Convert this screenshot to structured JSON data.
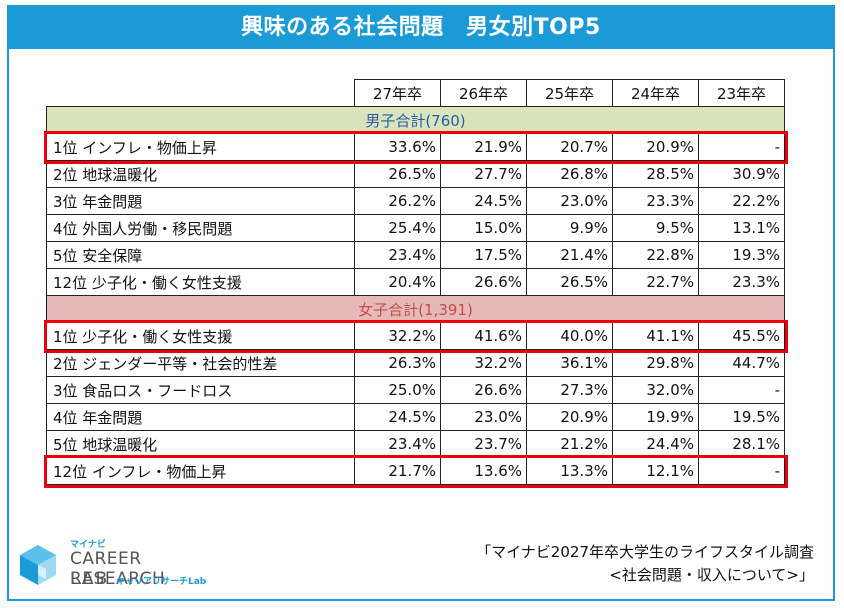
{
  "title": "興味のある社会問題　男女別TOP5",
  "chart_data": {
    "type": "table",
    "columns": [
      "27年卒",
      "26年卒",
      "25年卒",
      "24年卒",
      "23年卒"
    ],
    "groups": [
      {
        "label": "男子合計(760)",
        "rows": [
          {
            "label": "1位 インフレ・物価上昇",
            "values": [
              "33.6%",
              "21.9%",
              "20.7%",
              "20.9%",
              "-"
            ],
            "highlight": true
          },
          {
            "label": "2位 地球温暖化",
            "values": [
              "26.5%",
              "27.7%",
              "26.8%",
              "28.5%",
              "30.9%"
            ],
            "highlight": false
          },
          {
            "label": "3位 年金問題",
            "values": [
              "26.2%",
              "24.5%",
              "23.0%",
              "23.3%",
              "22.2%"
            ],
            "highlight": false
          },
          {
            "label": "4位 外国人労働・移民問題",
            "values": [
              "25.4%",
              "15.0%",
              "9.9%",
              "9.5%",
              "13.1%"
            ],
            "highlight": false
          },
          {
            "label": "5位 安全保障",
            "values": [
              "23.4%",
              "17.5%",
              "21.4%",
              "22.8%",
              "19.3%"
            ],
            "highlight": false
          },
          {
            "label": "12位 少子化・働く女性支援",
            "values": [
              "20.4%",
              "26.6%",
              "26.5%",
              "22.7%",
              "23.3%"
            ],
            "highlight": false
          }
        ]
      },
      {
        "label": "女子合計(1,391)",
        "rows": [
          {
            "label": "1位 少子化・働く女性支援",
            "values": [
              "32.2%",
              "41.6%",
              "40.0%",
              "41.1%",
              "45.5%"
            ],
            "highlight": true
          },
          {
            "label": "2位 ジェンダー平等・社会的性差",
            "values": [
              "26.3%",
              "32.2%",
              "36.1%",
              "29.8%",
              "44.7%"
            ],
            "highlight": false
          },
          {
            "label": "3位 食品ロス・フードロス",
            "values": [
              "25.0%",
              "26.6%",
              "27.3%",
              "32.0%",
              "-"
            ],
            "highlight": false
          },
          {
            "label": "4位 年金問題",
            "values": [
              "24.5%",
              "23.0%",
              "20.9%",
              "19.9%",
              "19.5%"
            ],
            "highlight": false
          },
          {
            "label": "5位 地球温暖化",
            "values": [
              "23.4%",
              "23.7%",
              "21.2%",
              "24.4%",
              "28.1%"
            ],
            "highlight": false
          },
          {
            "label": "12位 インフレ・物価上昇",
            "values": [
              "21.7%",
              "13.6%",
              "13.3%",
              "12.1%",
              "-"
            ],
            "highlight": true
          }
        ]
      }
    ]
  },
  "logo": {
    "top_label": "マイナビ",
    "line1": "CAREER RESEARCH",
    "line2": "LAB",
    "sub_label": "キャリアリサーチLab"
  },
  "source": {
    "line1": "「マイナビ2027年卒大学生のライフスタイル調査",
    "line2": "<社会問題・収入について>」"
  },
  "colors": {
    "accent": "#1a9bd7",
    "male_header_bg": "#d8e4bc",
    "male_header_text": "#2e5aa8",
    "female_header_bg": "#e6b8b7",
    "female_header_text": "#c0504d",
    "highlight_border": "#e8000b"
  }
}
